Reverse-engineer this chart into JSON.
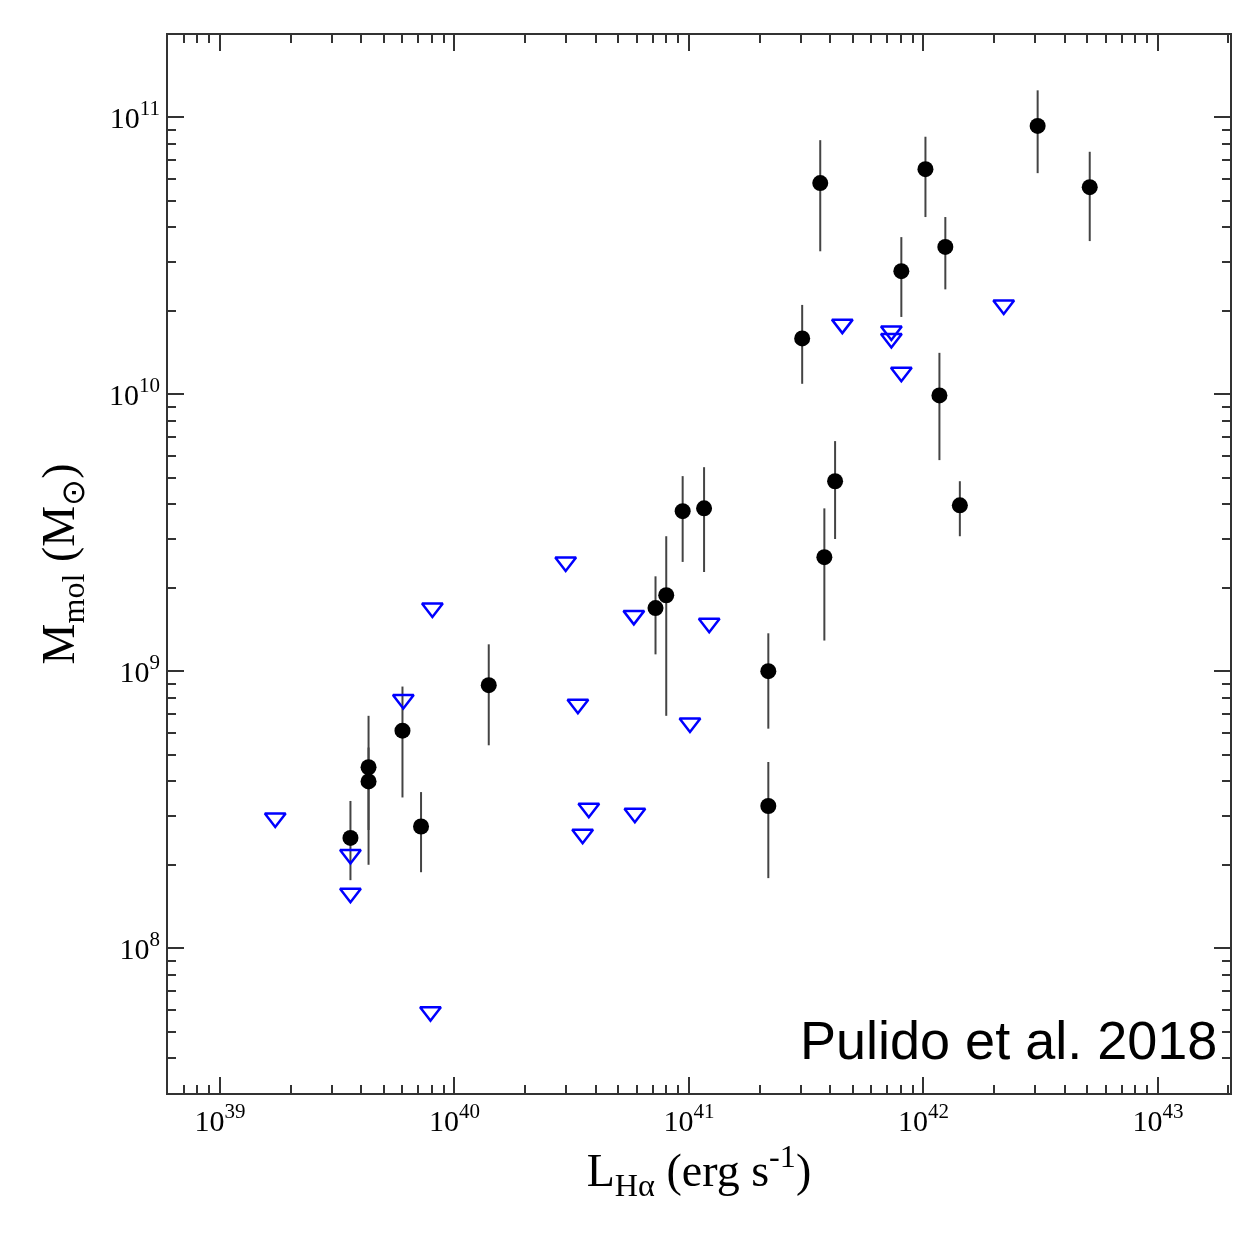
{
  "chart_data": {
    "type": "scatter",
    "xlabel": "L$_{Hα}$ (erg s$^{-1}$)",
    "ylabel": "M$_{mol}$ (M$_{⊙}$)",
    "log": "xy",
    "xlim": [
      6e+38,
      2.03e+43
    ],
    "ylim": [
      30000000.0,
      198000000000.0
    ],
    "xticks": [
      {
        "value": 1e+39,
        "label": "10$^{39}$"
      },
      {
        "value": 1e+40,
        "label": "10$^{40}$"
      },
      {
        "value": 1e+41,
        "label": "10$^{41}$"
      },
      {
        "value": 1e+42,
        "label": "10$^{42}$"
      },
      {
        "value": 1e+43,
        "label": "10$^{43}$"
      }
    ],
    "yticks": [
      {
        "value": 100000000.0,
        "label": "10$^{8}$"
      },
      {
        "value": 1000000000.0,
        "label": "10$^{9}$"
      },
      {
        "value": 10000000000.0,
        "label": "10$^{10}$"
      },
      {
        "value": 100000000000.0,
        "label": "10$^{11}$"
      }
    ],
    "annotations": [
      "Pulido et al. 2018"
    ],
    "series": [
      {
        "color": "#000000",
        "marker": "circle",
        "x": [
          3.6e+39,
          4.3e+39,
          4.3e+39,
          6e+39,
          7.2e+39,
          1.4e+40,
          7.2e+40,
          8e+40,
          9.4e+40,
          1.16e+41,
          2.18e+41,
          2.18e+41,
          3.78e+41,
          4.2e+41,
          1.43e+42,
          3.63e+41,
          1.02e+42,
          3.07e+42,
          5.12e+42,
          1.24e+42,
          8.05e+41,
          3.04e+41,
          1.17e+42
        ],
        "values": [
          250000000.0,
          450000000.0,
          400000000.0,
          610000000.0,
          275000000.0,
          890000000.0,
          1690000000.0,
          1880000000.0,
          3780000000.0,
          3870000000.0,
          1000000000.0,
          326000000.0,
          2580000000.0,
          4850000000.0,
          3970000000.0,
          57800000000.0,
          64900000000.0,
          93000000000.0,
          55900000000.0,
          34000000000.0,
          27800000000.0,
          15900000000.0,
          9900000000.0
        ],
        "errors": [
          [
            176000000.0,
            340000000.0
          ],
          [
            267000000.0,
            690000000.0
          ],
          [
            200000000.0,
            530000000.0
          ],
          [
            350000000.0,
            880000000.0
          ],
          [
            188000000.0,
            366000000.0
          ],
          [
            540000000.0,
            1250000000.0
          ],
          [
            1150000000.0,
            2200000000.0
          ],
          [
            690000000.0,
            3070000000.0
          ],
          [
            2480000000.0,
            5060000000.0
          ],
          [
            2280000000.0,
            5450000000.0
          ],
          [
            620000000.0,
            1370000000.0
          ],
          [
            179000000.0,
            470000000.0
          ],
          [
            1290000000.0,
            3870000000.0
          ],
          [
            3000000000.0,
            6770000000.0
          ],
          [
            3070000000.0,
            4850000000.0
          ],
          [
            32800000000.0,
            82600000000.0
          ],
          [
            43600000000.0,
            85000000000.0
          ],
          [
            62800000000.0,
            125000000000.0
          ],
          [
            35700000000.0,
            75000000000.0
          ],
          [
            23900000000.0,
            43600000000.0
          ],
          [
            19000000000.0,
            36900000000.0
          ],
          [
            10900000000.0,
            21000000000.0
          ],
          [
            5780000000.0,
            14100000000.0
          ]
        ]
      },
      {
        "color": "#0000ff",
        "marker": "triangle",
        "x": [
          2.98e+40,
          8.05e+39,
          5.82e+40,
          1.22e+41,
          6.05e+39,
          3.36e+40,
          1.01e+41,
          3.74e+40,
          5.88e+40,
          3.52e+40,
          3.6e+39,
          7.9e+39,
          1.72e+39,
          3.6e+39,
          4.51e+41,
          7.3e+41,
          7.3e+41,
          8.05e+41,
          2.2e+42
        ],
        "values": [
          2480000000.0,
          1690000000.0,
          1590000000.0,
          1490000000.0,
          790000000.0,
          760000000.0,
          650000000.0,
          320000000.0,
          307000000.0,
          258000000.0,
          218000000.0,
          59000000.0,
          295000000.0,
          158000000.0,
          17900000000.0,
          16900000000.0,
          15900000000.0,
          12000000000.0,
          21000000000.0
        ]
      }
    ]
  }
}
